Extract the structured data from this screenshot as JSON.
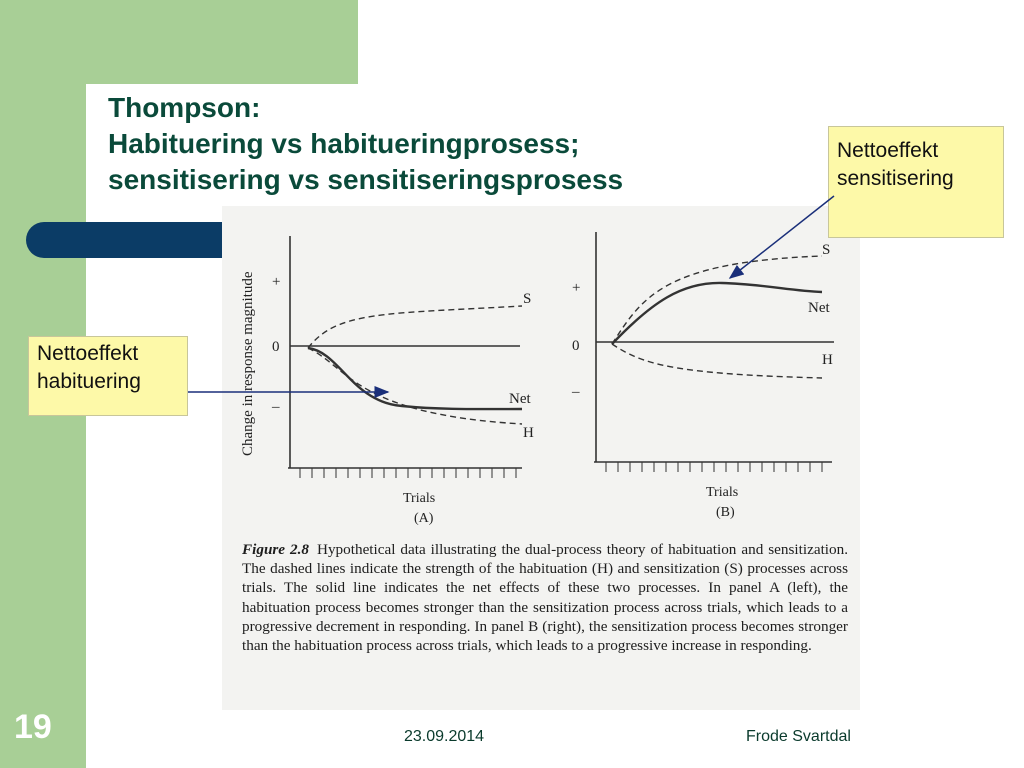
{
  "slide": {
    "page_number": "19",
    "date": "23.09.2014",
    "author": "Frode Svartdal",
    "title_lines": [
      "Thompson:",
      "Habituering vs habitueringprosess;",
      "sensitisering vs sensitiseringsprosess"
    ]
  },
  "callouts": {
    "sensitization": [
      "Nettoeffekt",
      "sensitisering"
    ],
    "habituation": [
      "Nettoeffekt",
      "habituering"
    ]
  },
  "figure": {
    "y_axis_label": "Change in response magnitude",
    "y_ticks": [
      "+",
      "0",
      "–"
    ],
    "x_label": "Trials",
    "panel_labels": [
      "(A)",
      "(B)"
    ],
    "curve_labels": {
      "s": "S",
      "net": "Net",
      "h": "H"
    },
    "caption_label": "Figure 2.8",
    "caption_text": "Hypothetical data illustrating the dual-process theory of habituation and sensitization. The dashed lines indicate the strength of the habituation (H) and sensitization (S) processes across trials. The solid line indicates the net effects of these two processes. In panel A (left), the habituation process becomes stronger than the sensitization process across trials, which leads to a progressive decrement in responding. In panel B (right), the sensitization process becomes stronger than the habituation process across trials, which leads to a progressive increase in responding."
  },
  "colors": {
    "green": "#a8cf96",
    "navy": "#0b3c66",
    "title": "#0a4a3a",
    "callout_bg": "#fdf9a8"
  }
}
